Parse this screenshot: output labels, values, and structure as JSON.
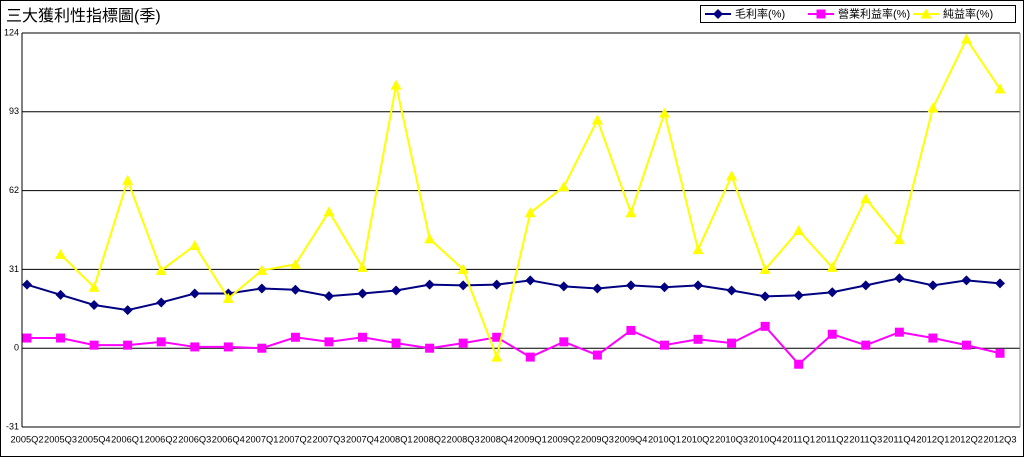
{
  "chart_data": {
    "type": "line",
    "title": "三大獲利性指標圖(季)",
    "categories": [
      "2005Q2",
      "2005Q3",
      "2005Q4",
      "2006Q1",
      "2006Q2",
      "2006Q3",
      "2006Q4",
      "2007Q1",
      "2007Q2",
      "2007Q3",
      "2007Q4",
      "2008Q1",
      "2008Q2",
      "2008Q3",
      "2008Q4",
      "2009Q1",
      "2009Q2",
      "2009Q3",
      "2009Q4",
      "2010Q1",
      "2010Q2",
      "2010Q3",
      "2010Q4",
      "2011Q1",
      "2011Q2",
      "2011Q3",
      "2011Q4",
      "2012Q1",
      "2012Q2",
      "2012Q3"
    ],
    "series": [
      {
        "name": "毛利率(%)",
        "color": "#000080",
        "marker": "diamond",
        "values": [
          25,
          21,
          17,
          15,
          18,
          21.5,
          21.5,
          23.5,
          23,
          20.5,
          21.5,
          22.7,
          25,
          24.7,
          25,
          26.7,
          24.3,
          23.5,
          24.7,
          24,
          24.7,
          22.7,
          20.4,
          20.8,
          22,
          24.7,
          27.5,
          24.7,
          26.7,
          25.5
        ]
      },
      {
        "name": "營業利益率(%)",
        "color": "#ff00ff",
        "marker": "square",
        "values": [
          4,
          4,
          1.2,
          1.2,
          2.5,
          0.5,
          0.5,
          0,
          4.3,
          2.5,
          4.3,
          2,
          0,
          2,
          4.3,
          -3.5,
          2.5,
          -2.7,
          7,
          1.2,
          3.5,
          2,
          8.6,
          -6.3,
          5.5,
          1.2,
          6.3,
          4,
          1.2,
          -2
        ]
      },
      {
        "name": "純益率(%)",
        "color": "#ffff00",
        "marker": "triangle",
        "values": [
          null,
          36.9,
          24,
          66,
          30.6,
          40.4,
          19.6,
          30.6,
          33,
          53.7,
          31.8,
          103.5,
          43,
          31,
          -3.5,
          53.3,
          63.5,
          89.8,
          53.3,
          92.5,
          38.8,
          67.8,
          31,
          46.3,
          31.8,
          58.8,
          42.7,
          94.5,
          121.6,
          102
        ]
      }
    ],
    "ylim": [
      -31,
      124
    ],
    "yticks": [
      -31,
      0,
      31,
      62,
      93,
      124
    ],
    "grid": true
  }
}
